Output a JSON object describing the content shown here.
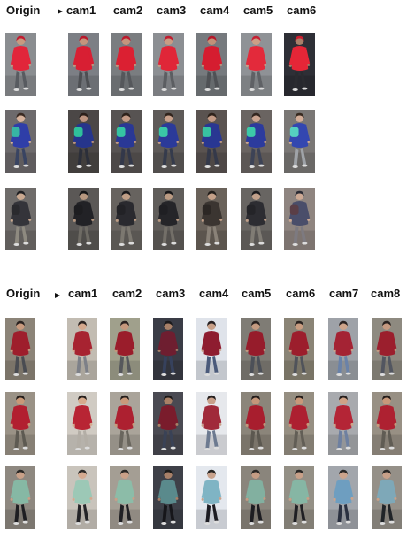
{
  "panel_top": {
    "origin_label": "Origin",
    "cams": [
      "cam1",
      "cam2",
      "cam3",
      "cam4",
      "cam5",
      "cam6"
    ],
    "rows": [
      {
        "origin": {
          "bg": "#8a8d90",
          "top": "#e1263a",
          "bottom": "#585b60",
          "hair": "#c21c30",
          "skin": "#c79a80",
          "bag": null
        },
        "cams": [
          {
            "bg": "#7c7f85",
            "top": "#d81f33",
            "bottom": "#4d4f53",
            "hair": "#b8192c",
            "skin": "#c4957c",
            "bag": null
          },
          {
            "bg": "#7a7d80",
            "top": "#db2032",
            "bottom": "#55575b",
            "hair": "#bb1a2d",
            "skin": "#c4957c",
            "bag": null
          },
          {
            "bg": "#8c8f93",
            "top": "#e02638",
            "bottom": "#5c5e62",
            "hair": "#c01d30",
            "skin": "#c99c84",
            "bag": null
          },
          {
            "bg": "#767a7e",
            "top": "#d51d30",
            "bottom": "#4f5155",
            "hair": "#b4182a",
            "skin": "#c19178",
            "bag": null
          },
          {
            "bg": "#8f9296",
            "top": "#e32a3b",
            "bottom": "#5f6165",
            "hair": "#c52033",
            "skin": "#cc9f86",
            "bag": null
          },
          {
            "bg": "#2e2f36",
            "top": "#e52637",
            "bottom": "#2a2b30",
            "hair": "#cc1d2f",
            "skin": "#a9806a",
            "bag": null
          }
        ]
      },
      {
        "origin": {
          "bg": "#6d6a6c",
          "top": "#2f3ea8",
          "bottom": "#394462",
          "hair": "#3a2a22",
          "skin": "#d6b29c",
          "bag": "#37b5a4"
        },
        "cams": [
          {
            "bg": "#4b4746",
            "top": "#26358c",
            "bottom": "#2c2f3a",
            "hair": "#2b1f1a",
            "skin": "#bd9480",
            "bag": "#2fc09b"
          },
          {
            "bg": "#575352",
            "top": "#2a3895",
            "bottom": "#33384a",
            "hair": "#2d211b",
            "skin": "#c39a86",
            "bag": "#35c4a2"
          },
          {
            "bg": "#5e5a58",
            "top": "#2b3a99",
            "bottom": "#353b4c",
            "hair": "#30231c",
            "skin": "#c8a08b",
            "bag": "#3ac8a6"
          },
          {
            "bg": "#5a5350",
            "top": "#293792",
            "bottom": "#34394a",
            "hair": "#2e221b",
            "skin": "#c29a85",
            "bag": "#38c2a1"
          },
          {
            "bg": "#6a6461",
            "top": "#2c3b9d",
            "bottom": "#3d4356",
            "hair": "#33261f",
            "skin": "#cba490",
            "bag": "#3ccaa8"
          },
          {
            "bg": "#7a7775",
            "top": "#3347b0",
            "bottom": "#9fa3a8",
            "hair": "#37291f",
            "skin": "#d3ad98",
            "bag": "#55d0c0"
          }
        ]
      },
      {
        "origin": {
          "bg": "#6f6c6a",
          "top": "#34343a",
          "bottom": "#8e8a80",
          "hair": "#1f1f22",
          "skin": "#c9a890",
          "bag": "#2a2a2e"
        },
        "cams": [
          {
            "bg": "#5b5856",
            "top": "#222226",
            "bottom": "#6e6b64",
            "hair": "#151517",
            "skin": "#b7977f",
            "bag": "#1d1d20"
          },
          {
            "bg": "#67635f",
            "top": "#2a2a2f",
            "bottom": "#7c7870",
            "hair": "#18181b",
            "skin": "#bf9e86",
            "bag": "#222226"
          },
          {
            "bg": "#605d5a",
            "top": "#252529",
            "bottom": "#736f68",
            "hair": "#161618",
            "skin": "#ba9a82",
            "bag": "#1f1f23"
          },
          {
            "bg": "#6a625a",
            "top": "#3b3531",
            "bottom": "#8a8278",
            "hair": "#221e1b",
            "skin": "#c4a088",
            "bag": "#2c2724"
          },
          {
            "bg": "#686562",
            "top": "#2d2d32",
            "bottom": "#807c74",
            "hair": "#1a1a1d",
            "skin": "#c1a08a",
            "bag": "#242428"
          },
          {
            "bg": "#8f8580",
            "top": "#4a4e6a",
            "bottom": "#7d7a80",
            "hair": "#2b2b34",
            "skin": "#cda994",
            "bag": "#5a3e46"
          }
        ]
      }
    ]
  },
  "panel_bottom": {
    "origin_label": "Origin",
    "cams": [
      "cam1",
      "cam2",
      "cam3",
      "cam4",
      "cam5",
      "cam6",
      "cam7",
      "cam8"
    ],
    "rows": [
      {
        "origin": {
          "bg": "#8c8478",
          "top": "#9e1e2c",
          "bottom": "#4a4c52",
          "hair": "#2a2220",
          "skin": "#c89a7e",
          "bag": null
        },
        "cams": [
          {
            "bg": "#c2bcb2",
            "top": "#a72331",
            "bottom": "#7d8088",
            "hair": "#2c2421",
            "skin": "#d4a88c",
            "bag": null
          },
          {
            "bg": "#a0a08c",
            "top": "#9a1d2b",
            "bottom": "#56585c",
            "hair": "#2a2220",
            "skin": "#c5987c",
            "bag": null
          },
          {
            "bg": "#3a3c46",
            "top": "#6e1e30",
            "bottom": "#36415c",
            "hair": "#1c1a1c",
            "skin": "#a88068",
            "bag": null
          },
          {
            "bg": "#dfe3ea",
            "top": "#8e1c30",
            "bottom": "#4a5a7a",
            "hair": "#262022",
            "skin": "#c8a088",
            "bag": null
          },
          {
            "bg": "#7f7c75",
            "top": "#961c2b",
            "bottom": "#4c5058",
            "hair": "#28211f",
            "skin": "#c49a80",
            "bag": null
          },
          {
            "bg": "#8a8476",
            "top": "#9c1e2c",
            "bottom": "#50535a",
            "hair": "#29221f",
            "skin": "#c89c80",
            "bag": null
          },
          {
            "bg": "#9ea2a8",
            "top": "#a42334",
            "bottom": "#6a82a8",
            "hair": "#2a2322",
            "skin": "#cda48a",
            "bag": null
          },
          {
            "bg": "#8e8a80",
            "top": "#9b1f2d",
            "bottom": "#525660",
            "hair": "#29221f",
            "skin": "#c69a80",
            "bag": null
          }
        ]
      },
      {
        "origin": {
          "bg": "#9a9286",
          "top": "#b21f30",
          "bottom": "#5e5a52",
          "hair": "#251e1b",
          "skin": "#c89878",
          "bag": null
        },
        "cams": [
          {
            "bg": "#d0cbc3",
            "top": "#b82534",
            "bottom": "#b3aea6",
            "hair": "#261f1c",
            "skin": "#d6aa8c",
            "bag": null
          },
          {
            "bg": "#aaa49a",
            "top": "#ad2030",
            "bottom": "#6a665e",
            "hair": "#241d1a",
            "skin": "#c9997a",
            "bag": null
          },
          {
            "bg": "#4a4a52",
            "top": "#7a1c2c",
            "bottom": "#3a4256",
            "hair": "#1b1818",
            "skin": "#a98066",
            "bag": null
          },
          {
            "bg": "#e6e8ec",
            "top": "#a02a3a",
            "bottom": "#6d7a90",
            "hair": "#241e1d",
            "skin": "#c8a08a",
            "bag": null
          },
          {
            "bg": "#8b857a",
            "top": "#a81e2e",
            "bottom": "#5c5850",
            "hair": "#231c1a",
            "skin": "#c4967a",
            "bag": null
          },
          {
            "bg": "#968f82",
            "top": "#ad2031",
            "bottom": "#625e56",
            "hair": "#241d1a",
            "skin": "#c8987a",
            "bag": null
          },
          {
            "bg": "#a8aaae",
            "top": "#b42536",
            "bottom": "#6e80a0",
            "hair": "#261f1d",
            "skin": "#cfa286",
            "bag": null
          },
          {
            "bg": "#989084",
            "top": "#ae2131",
            "bottom": "#605c54",
            "hair": "#241d1a",
            "skin": "#c8987a",
            "bag": null
          }
        ]
      },
      {
        "origin": {
          "bg": "#8e8880",
          "top": "#86b8a4",
          "bottom": "#1e1e22",
          "hair": "#2a2826",
          "skin": "#c8a088",
          "bag": null
        },
        "cams": [
          {
            "bg": "#c9c4bc",
            "top": "#9cc8b6",
            "bottom": "#242428",
            "hair": "#2c2a28",
            "skin": "#d4aa90",
            "bag": null
          },
          {
            "bg": "#a49e94",
            "top": "#8cbca8",
            "bottom": "#202024",
            "hair": "#2a2826",
            "skin": "#c9a088",
            "bag": null
          },
          {
            "bg": "#3e4048",
            "top": "#5a8a8c",
            "bottom": "#16161a",
            "hair": "#1c1b1a",
            "skin": "#a88068",
            "bag": null
          },
          {
            "bg": "#e4e8ee",
            "top": "#7fb4c4",
            "bottom": "#1c1c22",
            "hair": "#262422",
            "skin": "#c8a28c",
            "bag": null
          },
          {
            "bg": "#8a857c",
            "top": "#82b0a0",
            "bottom": "#1d1d21",
            "hair": "#292725",
            "skin": "#c49c84",
            "bag": null
          },
          {
            "bg": "#949086",
            "top": "#86b6a4",
            "bottom": "#1f1f23",
            "hair": "#2a2826",
            "skin": "#c8a088",
            "bag": null
          },
          {
            "bg": "#a2a6ac",
            "top": "#6e9ec0",
            "bottom": "#2a3040",
            "hair": "#2a2827",
            "skin": "#cca48c",
            "bag": null
          },
          {
            "bg": "#959088",
            "top": "#7ea8b8",
            "bottom": "#202428",
            "hair": "#2a2826",
            "skin": "#c8a088",
            "bag": null
          }
        ]
      }
    ]
  }
}
